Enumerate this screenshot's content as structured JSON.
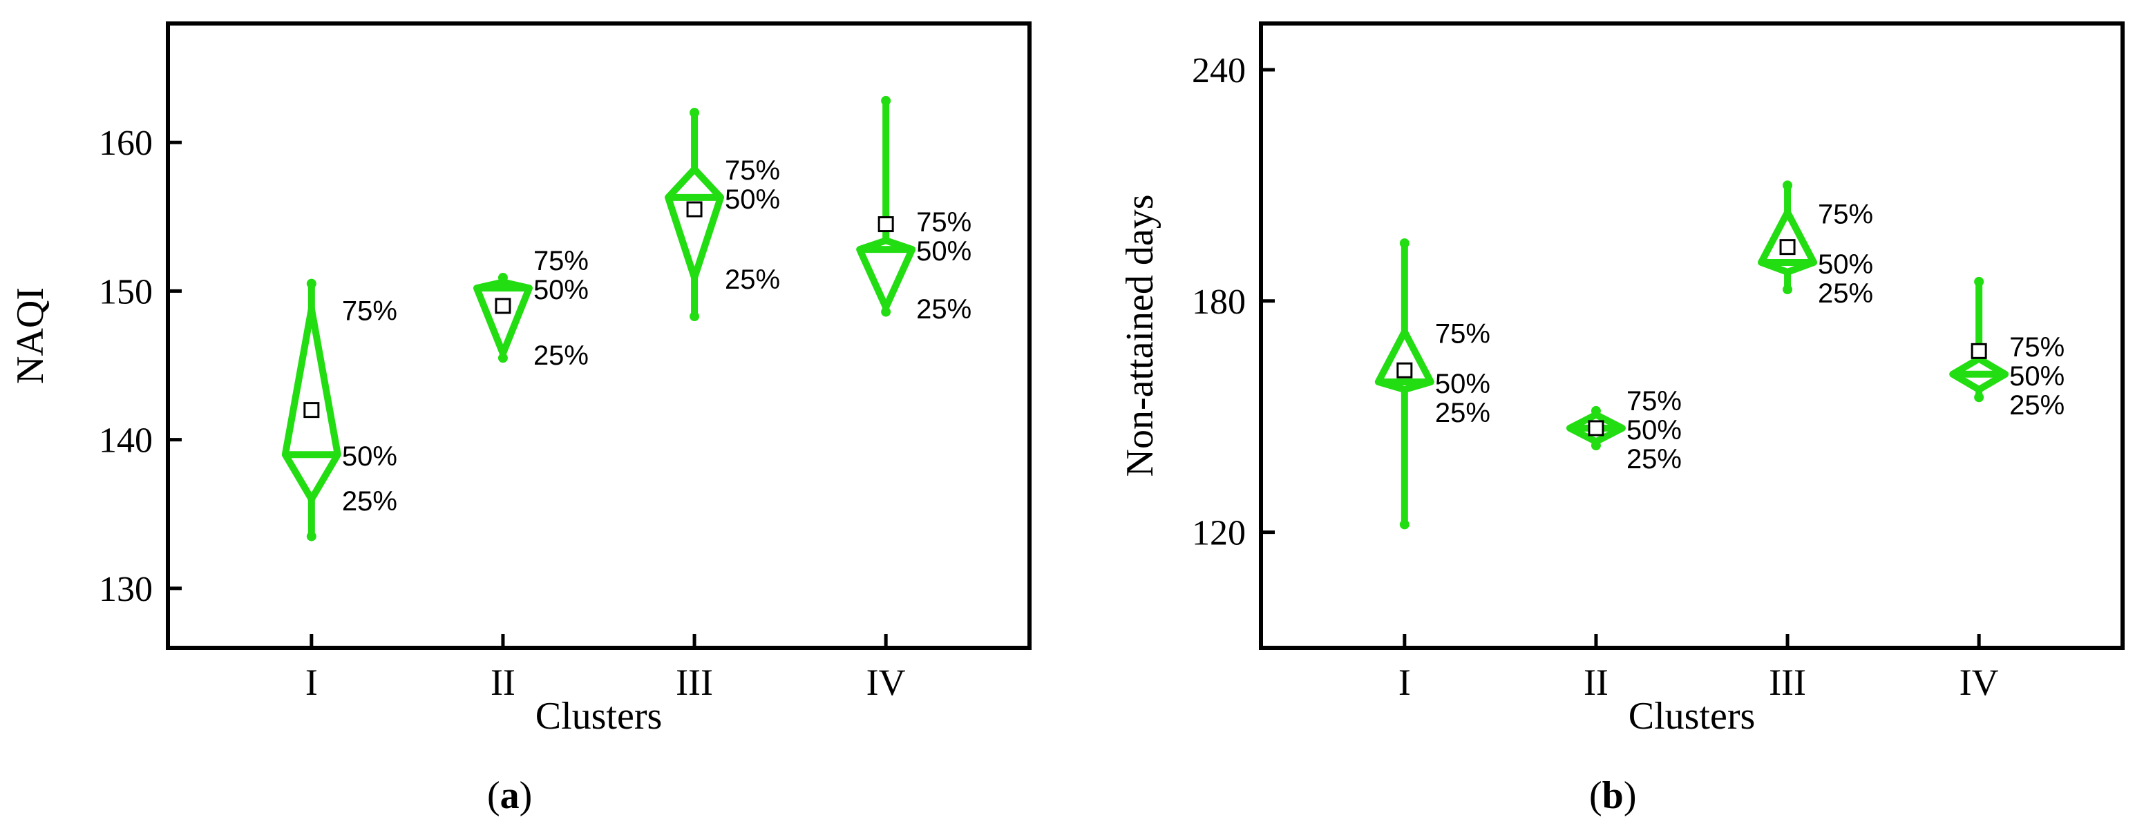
{
  "chart_data": [
    {
      "type": "box",
      "panel_label": "a",
      "xlabel": "Clusters",
      "ylabel": "NAQI",
      "categories": [
        "I",
        "II",
        "III",
        "IV"
      ],
      "ylim": [
        126,
        168
      ],
      "yticks": [
        130,
        140,
        150,
        160
      ],
      "grid": false,
      "color": "#22dd11",
      "box_labels": [
        "75%",
        "50%",
        "25%"
      ],
      "series": [
        {
          "category": "I",
          "min": 133.5,
          "q1": 136.0,
          "median": 139.0,
          "q3": 148.8,
          "max": 150.5,
          "mean": 142.0
        },
        {
          "category": "II",
          "min": 145.5,
          "q1": 145.8,
          "median": 150.2,
          "q3": 150.6,
          "max": 150.9,
          "mean": 149.0
        },
        {
          "category": "III",
          "min": 148.3,
          "q1": 150.9,
          "median": 156.3,
          "q3": 158.2,
          "max": 162.0,
          "mean": 155.5
        },
        {
          "category": "IV",
          "min": 148.6,
          "q1": 148.9,
          "median": 152.8,
          "q3": 153.4,
          "max": 162.8,
          "mean": 154.5
        }
      ]
    },
    {
      "type": "box",
      "panel_label": "b",
      "xlabel": "Clusters",
      "ylabel": "Non-attained days",
      "categories": [
        "I",
        "II",
        "III",
        "IV"
      ],
      "ylim": [
        90,
        252
      ],
      "yticks": [
        120,
        180,
        240
      ],
      "grid": false,
      "color": "#22dd11",
      "box_labels": [
        "75%",
        "50%",
        "25%"
      ],
      "series": [
        {
          "category": "I",
          "min": 122.0,
          "q1": 157.0,
          "median": 159.0,
          "q3": 172.0,
          "max": 195.0,
          "mean": 162.0
        },
        {
          "category": "II",
          "min": 142.5,
          "q1": 143.5,
          "median": 147.0,
          "q3": 150.5,
          "max": 151.5,
          "mean": 147.0
        },
        {
          "category": "III",
          "min": 183.0,
          "q1": 187.5,
          "median": 190.0,
          "q3": 203.0,
          "max": 210.0,
          "mean": 194.0
        },
        {
          "category": "IV",
          "min": 155.0,
          "q1": 157.0,
          "median": 161.0,
          "q3": 165.0,
          "max": 185.0,
          "mean": 167.0
        }
      ]
    }
  ]
}
